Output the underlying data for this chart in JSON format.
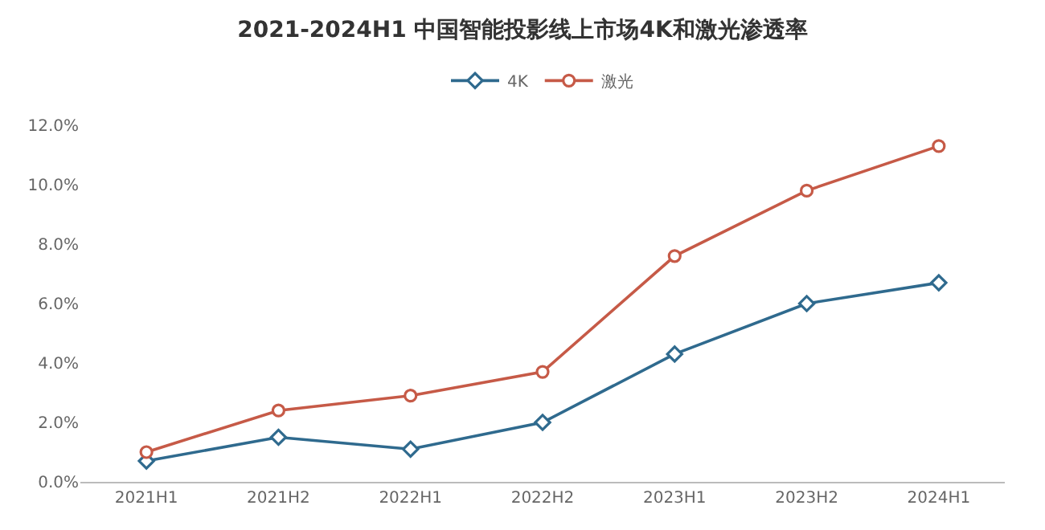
{
  "chart_data": {
    "type": "line",
    "title": "2021-2024H1 中国智能投影线上市场4K和激光渗透率",
    "categories": [
      "2021H1",
      "2021H2",
      "2022H1",
      "2022H2",
      "2023H1",
      "2023H2",
      "2024H1"
    ],
    "series": [
      {
        "name": "4K",
        "color": "#2f6a8e",
        "marker": "diamond",
        "values": [
          0.7,
          1.5,
          1.1,
          2.0,
          4.3,
          6.0,
          6.7
        ]
      },
      {
        "name": "激光",
        "color": "#c65a47",
        "marker": "circle",
        "values": [
          1.0,
          2.4,
          2.9,
          3.7,
          7.6,
          9.8,
          11.3
        ]
      }
    ],
    "ylim": [
      0,
      12
    ],
    "yticks": [
      {
        "value": 0,
        "label": "0.0%"
      },
      {
        "value": 2,
        "label": "2.0%"
      },
      {
        "value": 4,
        "label": "4.0%"
      },
      {
        "value": 6,
        "label": "6.0%"
      },
      {
        "value": 8,
        "label": "8.0%"
      },
      {
        "value": 10,
        "label": "10.0%"
      },
      {
        "value": 12,
        "label": "12.0%"
      }
    ],
    "grid": false,
    "legend": "top",
    "line_style": "solid"
  }
}
